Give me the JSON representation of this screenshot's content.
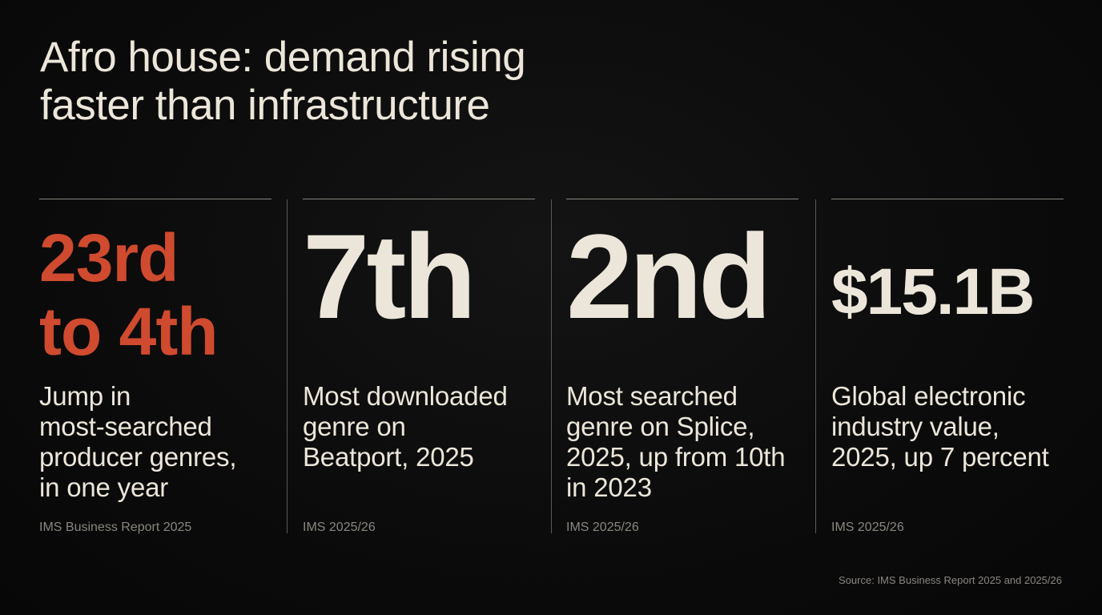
{
  "title": {
    "line1": "Afro house: demand rising",
    "line2": "faster than infrastructure"
  },
  "stats": [
    {
      "value_lines": [
        "23rd",
        "to 4th"
      ],
      "description_lines": [
        "Jump in",
        "most-searched",
        "producer genres,",
        "in one year"
      ],
      "source": "IMS Business Report 2025",
      "color": "#cf4a2e"
    },
    {
      "value_lines": [
        "7th"
      ],
      "description_lines": [
        "Most downloaded",
        "genre on",
        "Beatport, 2025"
      ],
      "source": "IMS 2025/26",
      "color": "#ece6da"
    },
    {
      "value_lines": [
        "2nd"
      ],
      "description_lines": [
        "Most searched",
        "genre on Splice,",
        "2025, up from 10th",
        "in 2023"
      ],
      "source": "IMS 2025/26",
      "color": "#ece6da"
    },
    {
      "value_lines": [
        "$15.1B"
      ],
      "description_lines": [
        "Global electronic",
        "industry value,",
        "2025, up 7 percent"
      ],
      "source": "IMS 2025/26",
      "color": "#ece6da"
    }
  ],
  "footer": {
    "source": "Source: IMS Business Report 2025 and 2025/26"
  },
  "colors": {
    "background": "#0c0c0c",
    "text": "#ece6da",
    "accent": "#cf4a2e",
    "muted": "#8a8680"
  }
}
